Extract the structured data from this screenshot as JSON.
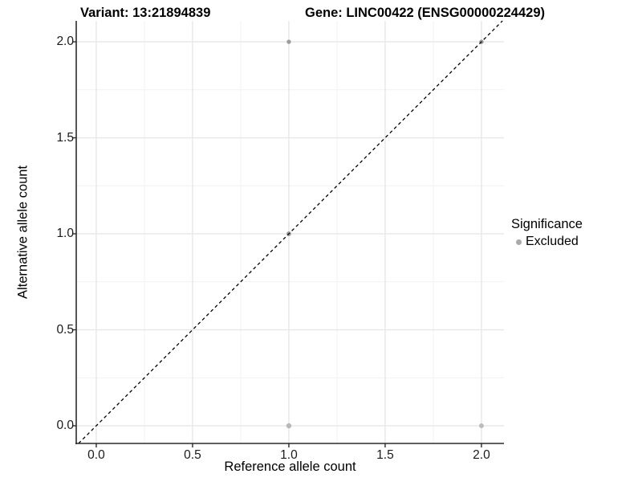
{
  "header": {
    "variant_title": "Variant: 13:21894839",
    "gene_title": "Gene: LINC00422 (ENSG00000224429)"
  },
  "chart_data": {
    "type": "scatter",
    "xlabel": "Reference allele count",
    "ylabel": "Alternative allele count",
    "xlim": [
      -0.104,
      2.117
    ],
    "ylim": [
      -0.092,
      2.109
    ],
    "x_ticks": [
      "0.0",
      "0.5",
      "1.0",
      "1.5",
      "2.0"
    ],
    "y_ticks": [
      "0.0",
      "0.5",
      "1.0",
      "1.5",
      "2.0"
    ],
    "x_tick_values": [
      0,
      0.5,
      1,
      1.5,
      2
    ],
    "y_tick_values": [
      0,
      0.5,
      1,
      1.5,
      2
    ],
    "minor_tick_values": [
      0.25,
      0.75,
      1.25,
      1.75
    ],
    "grid": "major+minor",
    "series": [
      {
        "name": "Excluded",
        "points": [
          {
            "x": 1,
            "y": 2,
            "color": "#9d9d9d",
            "r": 2.7
          },
          {
            "x": 1,
            "y": 1,
            "color": "#a1a1a1",
            "r": 3.0
          },
          {
            "x": 1,
            "y": 0,
            "color": "#b8b8b8",
            "r": 3.2
          },
          {
            "x": 2,
            "y": 0,
            "color": "#bdbdbd",
            "r": 3.0
          },
          {
            "x": 2,
            "y": 2,
            "color": "#979797",
            "r": 2.7
          }
        ]
      }
    ],
    "identity_line": {
      "type": "y=x",
      "style": "dashed",
      "color": "#000000"
    },
    "legend": {
      "position": "right",
      "title": "Significance",
      "entries": [
        {
          "label": "Excluded",
          "color": "#aaaaaa"
        }
      ]
    },
    "colors": {
      "grid_major": "#e7e7e7",
      "grid_minor": "#f1f1f1",
      "axis": "#2b2b2b",
      "background": "#ffffff"
    }
  }
}
